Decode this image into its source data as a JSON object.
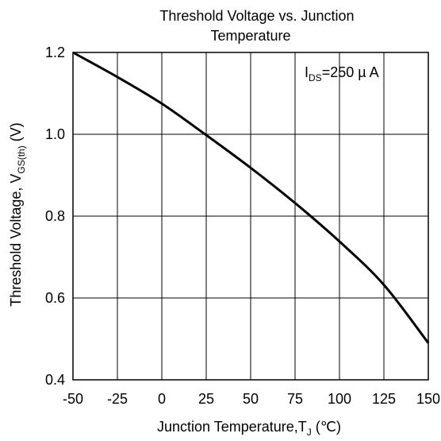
{
  "chart_data": {
    "type": "line",
    "title_line1": "Threshold Voltage vs. Junction",
    "title_line2": "Temperature",
    "xlabel": "Junction Temperature,T",
    "xlabel_sub": "J",
    "xlabel_unit": " (℃)",
    "ylabel": "Threshold Voltage, V",
    "ylabel_sub": "GS(th)",
    "ylabel_unit": " (V)",
    "annotation": "I",
    "annotation_sub": "DS",
    "annotation_rest": "=250 µ A",
    "xlim": [
      -50,
      150
    ],
    "ylim": [
      0.4,
      1.2
    ],
    "x_ticks": [
      -50,
      -25,
      0,
      25,
      50,
      75,
      100,
      125,
      150
    ],
    "x_tick_labels": [
      "-50",
      "-25",
      "0",
      "25",
      "50",
      "75",
      "100",
      "125",
      "150"
    ],
    "y_ticks": [
      0.4,
      0.6,
      0.8,
      1.0,
      1.2
    ],
    "y_tick_labels": [
      "0.4",
      "0.6",
      "0.8",
      "1.0",
      "1.2"
    ],
    "grid": true,
    "series": [
      {
        "x": [
          -50,
          -25,
          0,
          25,
          50,
          75,
          100,
          125,
          150
        ],
        "y": [
          1.2,
          1.14,
          1.075,
          0.998,
          0.918,
          0.832,
          0.738,
          0.632,
          0.49
        ]
      }
    ]
  }
}
